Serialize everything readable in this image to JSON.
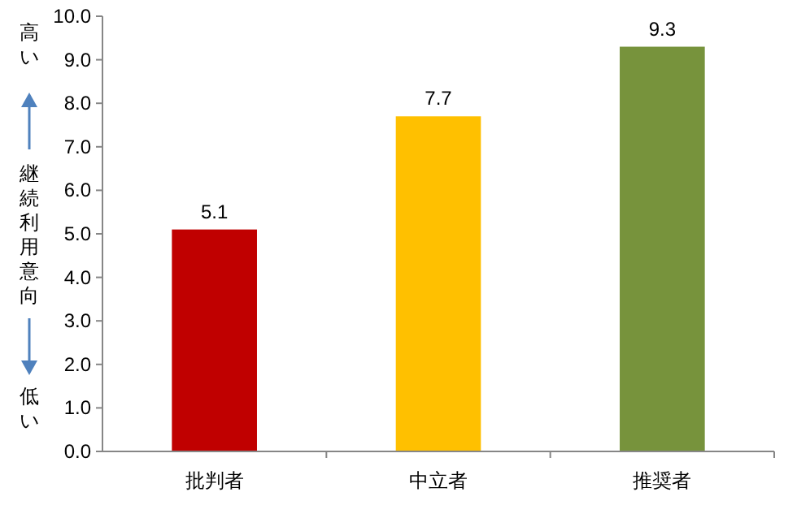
{
  "chart_data": {
    "type": "bar",
    "categories": [
      "批判者",
      "中立者",
      "推奨者"
    ],
    "values": [
      5.1,
      7.7,
      9.3
    ],
    "colors": [
      "#c00000",
      "#ffc000",
      "#77933c"
    ],
    "ylabel": "継続利用意向",
    "annotations": [
      "高い",
      "低い"
    ],
    "ylim": [
      0,
      10
    ],
    "yticks": [
      {
        "value": 0,
        "label": "0.0"
      },
      {
        "value": 1,
        "label": "1.0"
      },
      {
        "value": 2,
        "label": "2.0"
      },
      {
        "value": 3,
        "label": "3.0"
      },
      {
        "value": 4,
        "label": "4.0"
      },
      {
        "value": 5,
        "label": "5.0"
      },
      {
        "value": 6,
        "label": "6.0"
      },
      {
        "value": 7,
        "label": "7.0"
      },
      {
        "value": 8,
        "label": "8.0"
      },
      {
        "value": 9,
        "label": "9.0"
      },
      {
        "value": 10,
        "label": "10.0"
      }
    ],
    "data_labels": true,
    "grid": false
  }
}
